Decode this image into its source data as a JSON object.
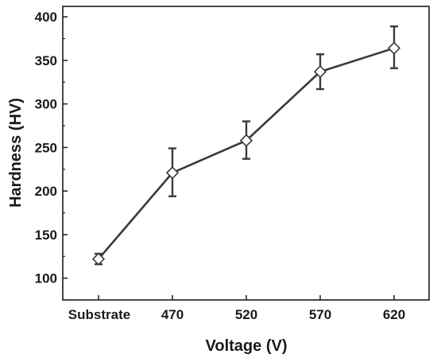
{
  "chart_data": {
    "type": "line",
    "title": "",
    "xlabel": "Voltage (V)",
    "ylabel": "Hardness (HV)",
    "categories": [
      "Substrate",
      "470",
      "520",
      "570",
      "620"
    ],
    "ylim": [
      75,
      412
    ],
    "yticks": [
      100,
      150,
      200,
      250,
      300,
      350,
      400
    ],
    "series": [
      {
        "values": [
          122,
          221,
          258,
          337,
          364
        ],
        "err_upper": [
          128,
          249,
          280,
          357,
          389
        ],
        "err_lower": [
          116,
          194,
          237,
          317,
          341
        ],
        "color": "#3a3a3a",
        "marker": "diamond-open"
      }
    ],
    "grid": false,
    "legend": "none"
  }
}
